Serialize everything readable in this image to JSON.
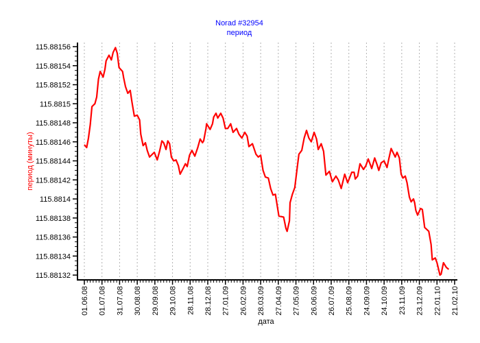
{
  "chart_data": {
    "type": "line",
    "title": "Norad #32954",
    "subtitle": "период",
    "xlabel": "дата",
    "ylabel": "период (минуты)",
    "x_unit": "days since 01.06.08",
    "xlim": [
      0,
      630
    ],
    "ylim": [
      115.88132,
      115.88156
    ],
    "grid": "vertical dotted",
    "x_tick_labels": [
      "01.06.08",
      "01.07.08",
      "31.07.08",
      "30.08.08",
      "29.09.08",
      "29.10.08",
      "28.11.08",
      "28.12.08",
      "27.01.09",
      "26.02.09",
      "28.03.09",
      "27.04.09",
      "27.05.09",
      "26.06.09",
      "26.07.09",
      "25.08.09",
      "24.09.09",
      "24.10.09",
      "23.11.09",
      "23.12.09",
      "22.01.10",
      "21.02.10"
    ],
    "y_ticks": [
      115.88156,
      115.88154,
      115.88152,
      115.8815,
      115.88148,
      115.88146,
      115.88144,
      115.88142,
      115.8814,
      115.88138,
      115.88136,
      115.88134,
      115.88132
    ],
    "y_tick_labels": [
      "115.88156",
      "115.88154",
      "115.88152",
      "115.8815",
      "115.88148",
      "115.88146",
      "115.88144",
      "115.88142",
      "115.8814",
      "115.88138",
      "115.88136",
      "115.88134",
      "115.88132"
    ],
    "series": [
      {
        "name": "период",
        "color": "#ff0000",
        "x": [
          0,
          4,
          7,
          10,
          13,
          18,
          21,
          24,
          27,
          32,
          35,
          37,
          42,
          46,
          49,
          53,
          56,
          59,
          65,
          67,
          70,
          74,
          78,
          81,
          85,
          90,
          94,
          96,
          100,
          104,
          107,
          111,
          119,
          124,
          128,
          132,
          135,
          139,
          142,
          145,
          148,
          152,
          156,
          160,
          163,
          168,
          172,
          175,
          179,
          183,
          188,
          193,
          197,
          201,
          203,
          207,
          208,
          214,
          218,
          220,
          224,
          227,
          232,
          236,
          240,
          244,
          249,
          253,
          259,
          263,
          268,
          273,
          277,
          280,
          286,
          292,
          296,
          300,
          304,
          308,
          313,
          317,
          321,
          325,
          331,
          339,
          343,
          345,
          349,
          350,
          354,
          358,
          362,
          365,
          370,
          374,
          378,
          382,
          386,
          391,
          395,
          398,
          403,
          407,
          411,
          417,
          422,
          428,
          432,
          437,
          443,
          448,
          455,
          459,
          461,
          465,
          469,
          475,
          479,
          483,
          489,
          494,
          498,
          501,
          505,
          510,
          515,
          518,
          522,
          529,
          532,
          536,
          539,
          542,
          546,
          549,
          553,
          556,
          560,
          562,
          564,
          567,
          572,
          575,
          579,
          586,
          590,
          592,
          597,
          600,
          605,
          607,
          611,
          616,
          620
        ],
        "y": [
          115.881457,
          115.881454,
          115.881464,
          115.881478,
          115.881497,
          115.8815,
          115.881507,
          115.881526,
          115.881534,
          115.881528,
          115.881536,
          115.881545,
          115.881551,
          115.881546,
          115.881554,
          115.881559,
          115.881553,
          115.881538,
          115.881534,
          115.881527,
          115.881518,
          115.881511,
          115.881514,
          115.881502,
          115.881487,
          115.881488,
          115.881483,
          115.881468,
          115.881456,
          115.881459,
          115.881451,
          115.881444,
          115.881449,
          115.881441,
          115.88145,
          115.881461,
          115.881459,
          115.881452,
          115.881461,
          115.881458,
          115.881444,
          115.88144,
          115.881441,
          115.881435,
          115.881426,
          115.881432,
          115.881437,
          115.881434,
          115.881446,
          115.881451,
          115.881445,
          115.881454,
          115.881463,
          115.881459,
          115.881461,
          115.881474,
          115.881479,
          115.881473,
          115.881479,
          115.881486,
          115.88149,
          115.881485,
          115.88149,
          115.881485,
          115.881474,
          115.881474,
          115.881479,
          115.88147,
          115.881474,
          115.881468,
          115.881464,
          115.88147,
          115.881466,
          115.881455,
          115.881458,
          115.881447,
          115.881444,
          115.881446,
          115.88143,
          115.881423,
          115.881422,
          115.881411,
          115.881404,
          115.881405,
          115.881382,
          115.881381,
          115.881369,
          115.881366,
          115.881377,
          115.881396,
          115.881405,
          115.881412,
          115.881432,
          115.881447,
          115.881451,
          115.881464,
          115.881472,
          115.881464,
          115.88146,
          115.88147,
          115.881463,
          115.881452,
          115.881458,
          115.88145,
          115.881425,
          115.881429,
          115.881418,
          115.881424,
          115.88142,
          115.881411,
          115.881426,
          115.881417,
          115.881428,
          115.881428,
          115.881421,
          115.881424,
          115.881437,
          115.881431,
          115.881435,
          115.881442,
          115.881432,
          115.881443,
          115.881436,
          115.88143,
          115.881438,
          115.88144,
          115.881433,
          115.881442,
          115.881453,
          115.881444,
          115.881449,
          115.881443,
          115.881426,
          115.881422,
          115.881424,
          115.881417,
          115.881402,
          115.881397,
          115.8814,
          115.881396,
          115.881388,
          115.881383,
          115.88139,
          115.881389,
          115.88137,
          115.881366,
          115.881352,
          115.881336,
          115.881338,
          115.881333,
          115.88132,
          115.881321,
          115.881333,
          115.881328,
          115.881326
        ]
      }
    ]
  },
  "colors": {
    "title": "#0000ff",
    "ylabel": "#ff0000",
    "axis": "#000000",
    "grid": "#b0b0b0"
  }
}
